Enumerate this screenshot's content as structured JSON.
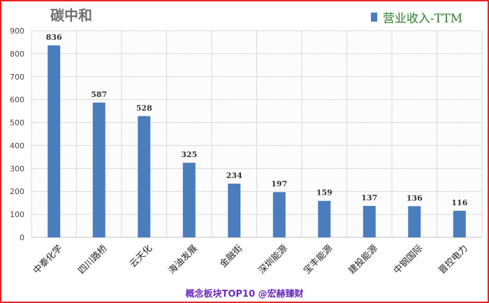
{
  "chart_data": {
    "type": "bar",
    "title": "碳中和",
    "series": [
      {
        "name": "营业收入-TTM",
        "values": [
          836,
          587,
          528,
          325,
          234,
          197,
          159,
          137,
          136,
          116
        ]
      }
    ],
    "categories": [
      "中泰化学",
      "四川路桥",
      "云天化",
      "海油发展",
      "金融街",
      "深圳能源",
      "宝丰能源",
      "建投能源",
      "中钢国际",
      "晋控电力"
    ],
    "yticks": [
      "0",
      "100",
      "200",
      "300",
      "400",
      "500",
      "600",
      "700",
      "800",
      "900"
    ],
    "ylim": [
      0,
      900
    ],
    "grid": true,
    "legend_position": "top-right",
    "colors": {
      "bar": "#4a7dbd",
      "frame": "#e8231f",
      "legend_text": "#2f7d2f",
      "footer_text": "#6a2bb8"
    }
  },
  "footer": "概念板块TOP10 @宏赫臻财"
}
